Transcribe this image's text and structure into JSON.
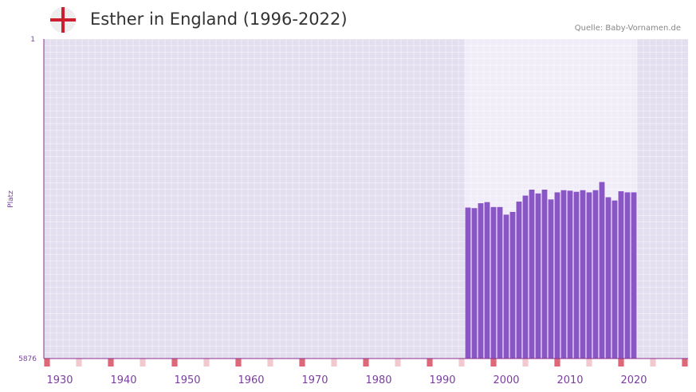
{
  "header": {
    "title": "Esther in England (1996-2022)",
    "source": "Quelle: Baby-Vornamen.de",
    "flag_icon": "england-flag-icon"
  },
  "colors": {
    "bar": "#8a56c6",
    "plot_bg": "#e3def0",
    "highlight_bg": "#f1edf8",
    "axis": "#8a2f8a",
    "marker_major": "#de6878",
    "marker_minor": "#f3c9d1",
    "flag_cross": "#cf1f2e"
  },
  "chart_data": {
    "type": "bar",
    "title": "Esther in England (1996-2022)",
    "ylabel": "Platz",
    "xlabel": "",
    "y_inverted": true,
    "ylim": [
      1,
      5876
    ],
    "ytick_labels": [
      "1",
      "5876"
    ],
    "xlim": [
      1927.5,
      2028.5
    ],
    "xtick_labels": [
      "1930",
      "1940",
      "1950",
      "1960",
      "1970",
      "1980",
      "1990",
      "2000",
      "2010",
      "2020"
    ],
    "highlight_range": [
      1994,
      2021
    ],
    "x": [
      1994,
      1995,
      1996,
      1997,
      1998,
      1999,
      2000,
      2001,
      2002,
      2003,
      2004,
      2005,
      2006,
      2007,
      2008,
      2009,
      2010,
      2011,
      2012,
      2013,
      2014,
      2015,
      2016,
      2017,
      2018,
      2019,
      2020
    ],
    "values": [
      3100,
      3110,
      3020,
      3000,
      3090,
      3090,
      3230,
      3180,
      2990,
      2880,
      2770,
      2840,
      2770,
      2950,
      2820,
      2780,
      2790,
      2810,
      2780,
      2820,
      2780,
      2630,
      2910,
      2970,
      2800,
      2820,
      2820
    ]
  }
}
